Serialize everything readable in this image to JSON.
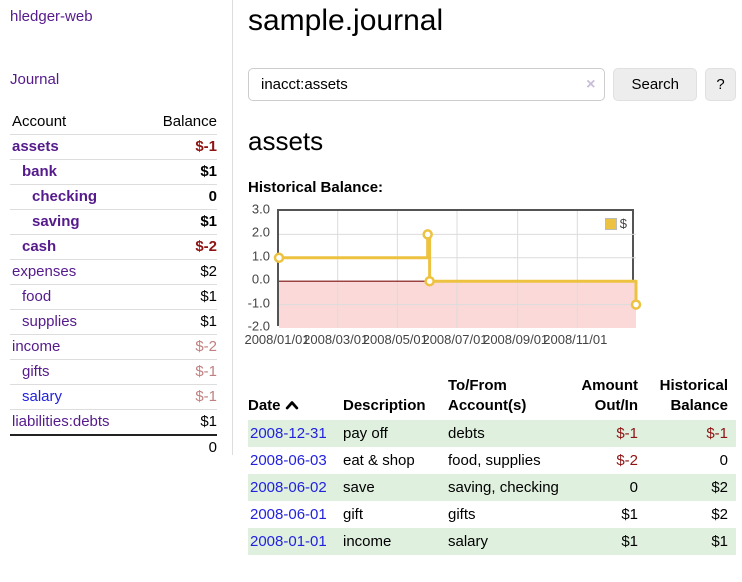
{
  "app": {
    "title": "hledger-web"
  },
  "colors": {
    "visited_link": "#551A8B",
    "unvisited_link": "#2222DD",
    "negative": "#8E1414",
    "negative_muted": "#C08080",
    "row_stripe_green": "#DFF0DF",
    "series_yellow": "#EDC240"
  },
  "sidebar": {
    "nav_journal": "Journal",
    "accounts_table": {
      "header_account": "Account",
      "header_balance": "Balance",
      "rows": [
        {
          "name": "assets",
          "depth": 0,
          "bold": true,
          "balance": "$-1",
          "balance_style": "negative"
        },
        {
          "name": "bank",
          "depth": 1,
          "bold": true,
          "balance": "$1",
          "balance_style": "normal"
        },
        {
          "name": "checking",
          "depth": 2,
          "bold": true,
          "balance": "0",
          "balance_style": "normal"
        },
        {
          "name": "saving",
          "depth": 2,
          "bold": true,
          "balance": "$1",
          "balance_style": "normal"
        },
        {
          "name": "cash",
          "depth": 1,
          "bold": true,
          "balance": "$-2",
          "balance_style": "negative"
        },
        {
          "name": "expenses",
          "depth": 0,
          "bold": false,
          "balance": "$2",
          "balance_style": "normal"
        },
        {
          "name": "food",
          "depth": 1,
          "bold": false,
          "balance": "$1",
          "balance_style": "normal"
        },
        {
          "name": "supplies",
          "depth": 1,
          "bold": false,
          "balance": "$1",
          "balance_style": "normal"
        },
        {
          "name": "income",
          "depth": 0,
          "bold": false,
          "balance": "$-2",
          "balance_style": "negative-muted"
        },
        {
          "name": "gifts",
          "depth": 1,
          "bold": false,
          "balance": "$-1",
          "balance_style": "negative-muted"
        },
        {
          "name": "salary",
          "depth": 1,
          "bold": false,
          "link_style": "unvisited",
          "balance": "$-1",
          "balance_style": "negative-muted"
        },
        {
          "name": "liabilities:debts",
          "depth": 0,
          "bold": false,
          "balance": "$1",
          "balance_style": "normal"
        }
      ],
      "total": "0"
    }
  },
  "main": {
    "title": "sample.journal",
    "search": {
      "value": "inacct:assets",
      "clear_icon": "×",
      "button_label": "Search",
      "help_label": "?"
    },
    "account_heading": "assets",
    "chart_heading": "Historical Balance:",
    "register": {
      "headers": [
        "Date",
        "Description",
        "To/From Account(s)",
        "Amount Out/In",
        "Historical Balance"
      ],
      "rows": [
        {
          "date": "2008-12-31",
          "description": "pay off",
          "accounts": "debts",
          "amount": "$-1",
          "amount_negative": true,
          "balance": "$-1",
          "balance_negative": true
        },
        {
          "date": "2008-06-03",
          "description": "eat & shop",
          "accounts": "food, supplies",
          "amount": "$-2",
          "amount_negative": true,
          "balance": "0",
          "balance_negative": false
        },
        {
          "date": "2008-06-02",
          "description": "save",
          "accounts": "saving, checking",
          "amount": "0",
          "amount_negative": false,
          "balance": "$2",
          "balance_negative": false
        },
        {
          "date": "2008-06-01",
          "description": "gift",
          "accounts": "gifts",
          "amount": "$1",
          "amount_negative": false,
          "balance": "$2",
          "balance_negative": false
        },
        {
          "date": "2008-01-01",
          "description": "income",
          "accounts": "salary",
          "amount": "$1",
          "amount_negative": false,
          "balance": "$1",
          "balance_negative": false
        }
      ]
    }
  },
  "chart_data": {
    "type": "line",
    "step": true,
    "title": "Historical Balance:",
    "legend": "$",
    "series": [
      {
        "name": "$",
        "color": "#EDC240",
        "points": [
          {
            "date": "2008-01-01",
            "value": 1
          },
          {
            "date": "2008-06-01",
            "value": 2
          },
          {
            "date": "2008-06-03",
            "value": 0
          },
          {
            "date": "2008-12-31",
            "value": -1
          }
        ]
      }
    ],
    "x_range": [
      "2008-01-01",
      "2008-12-31"
    ],
    "x_ticks": [
      "2008/01/01",
      "2008/03/01",
      "2008/05/01",
      "2008/07/01",
      "2008/09/01",
      "2008/11/01"
    ],
    "y_ticks": [
      3.0,
      2.0,
      1.0,
      0.0,
      -1.0,
      -2.0
    ],
    "ylim": [
      -2,
      3
    ],
    "grid": true,
    "legend_position": "top-right",
    "negative_fill": "#FBD9D9",
    "zero_line_color": "#7E1010"
  }
}
